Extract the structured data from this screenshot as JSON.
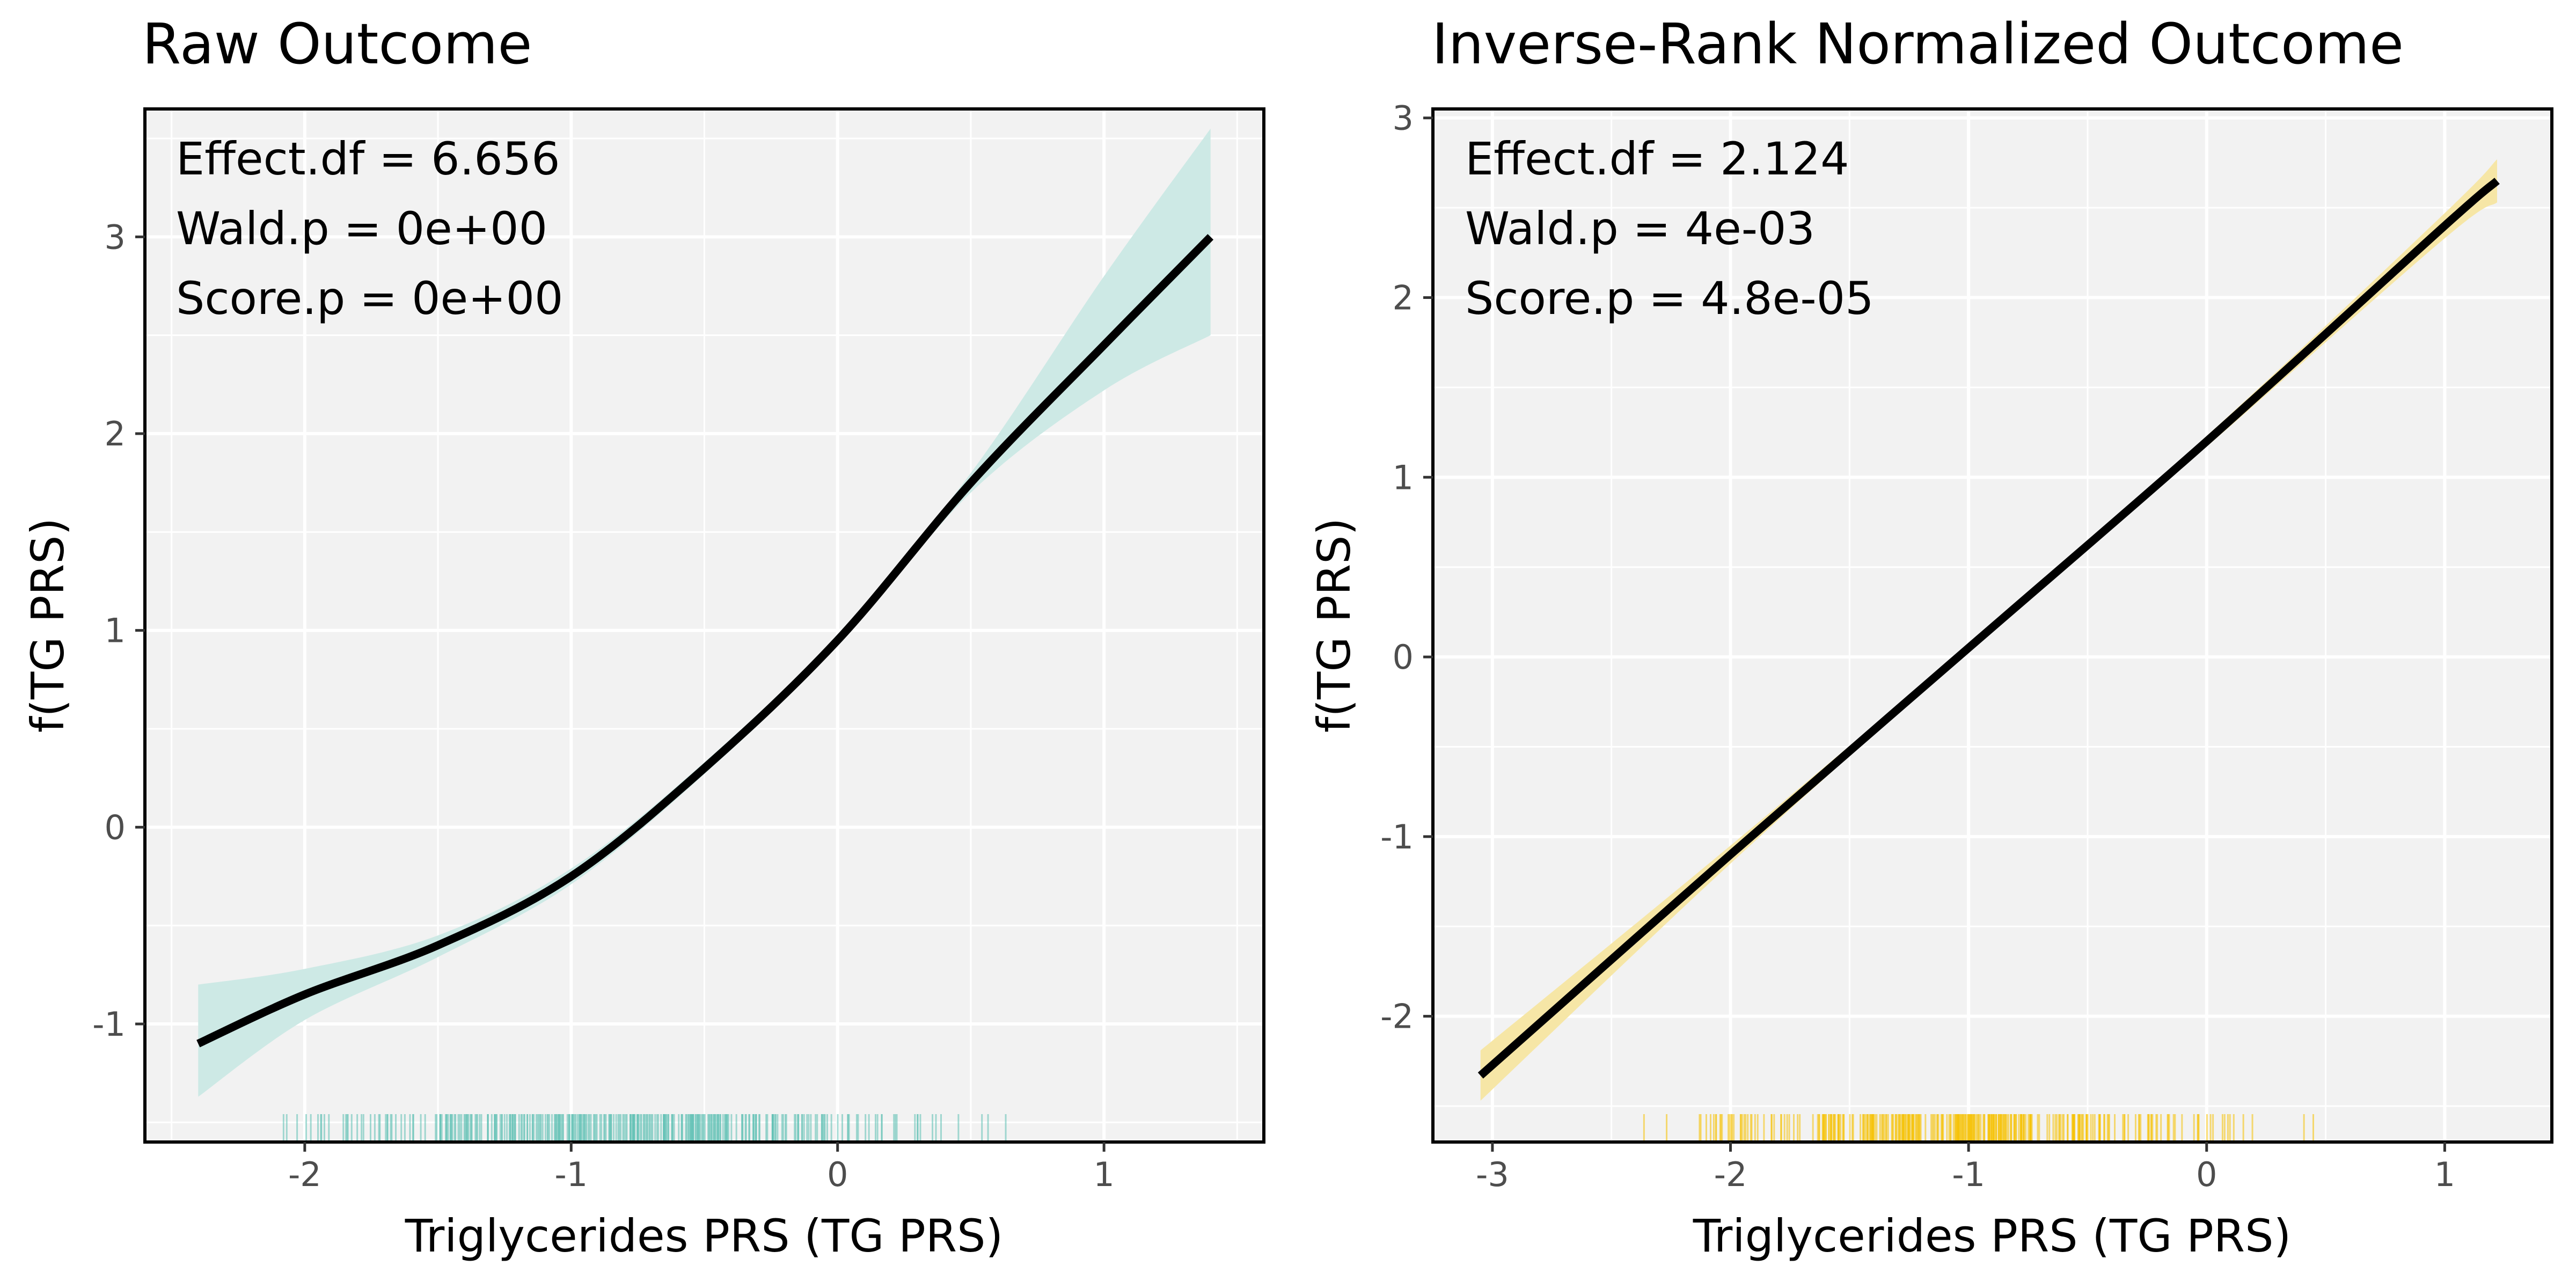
{
  "chart_data": [
    {
      "type": "line",
      "title": "Raw Outcome",
      "xlabel": "Triglycerides PRS (TG PRS)",
      "ylabel": "f(TG PRS)",
      "xlim": [
        -2.6,
        1.6
      ],
      "ylim": [
        -1.6,
        3.65
      ],
      "xticks": [
        -2,
        -1,
        0,
        1
      ],
      "yticks": [
        -1,
        0,
        1,
        2,
        3
      ],
      "xtick_labels": [
        "-2",
        "-1",
        "0",
        "1"
      ],
      "ytick_labels": [
        "-1",
        "0",
        "1",
        "2",
        "3"
      ],
      "grid": true,
      "annotations": [
        "Effect.df = 6.656",
        "Wald.p = 0e+00",
        "Score.p = 0e+00"
      ],
      "band_color": "#cde9e5",
      "rug_color": "#5bbfb3",
      "line_color": "#000000",
      "x": [
        -2.4,
        -2.0,
        -1.5,
        -1.0,
        -0.5,
        0.0,
        0.5,
        1.0,
        1.4
      ],
      "y": [
        -1.1,
        -0.85,
        -0.6,
        -0.25,
        0.3,
        0.95,
        1.75,
        2.45,
        3.0
      ],
      "ci_lower": [
        -1.37,
        -0.98,
        -0.66,
        -0.29,
        0.27,
        0.92,
        1.7,
        2.22,
        2.5
      ],
      "ci_upper": [
        -0.8,
        -0.72,
        -0.55,
        -0.21,
        0.33,
        0.98,
        1.8,
        2.8,
        3.55
      ],
      "rug_range": [
        -2.4,
        0.9
      ]
    },
    {
      "type": "line",
      "title": "Inverse-Rank Normalized Outcome",
      "xlabel": "Triglycerides PRS (TG PRS)",
      "ylabel": "f(TG PRS)",
      "xlim": [
        -3.25,
        1.45
      ],
      "ylim": [
        -2.7,
        3.05
      ],
      "xticks": [
        -3,
        -2,
        -1,
        0,
        1
      ],
      "yticks": [
        -2,
        -1,
        0,
        1,
        2,
        3
      ],
      "xtick_labels": [
        "-3",
        "-2",
        "-1",
        "0",
        "1"
      ],
      "ytick_labels": [
        "-2",
        "-1",
        "0",
        "1",
        "2",
        "3"
      ],
      "grid": true,
      "annotations": [
        "Effect.df = 2.124",
        "Wald.p = 4e-03",
        "Score.p = 4.8e-05"
      ],
      "band_color": "#f6e6a6",
      "rug_color": "#f5c100",
      "line_color": "#000000",
      "x": [
        -3.05,
        -2.0,
        -1.0,
        0.0,
        1.0,
        1.22
      ],
      "y": [
        -2.33,
        -1.1,
        0.05,
        1.2,
        2.4,
        2.65
      ],
      "ci_lower": [
        -2.47,
        -1.15,
        0.03,
        1.17,
        2.33,
        2.53
      ],
      "ci_upper": [
        -2.19,
        -1.05,
        0.07,
        1.23,
        2.47,
        2.77
      ],
      "rug_range": [
        -2.55,
        0.55
      ]
    }
  ]
}
